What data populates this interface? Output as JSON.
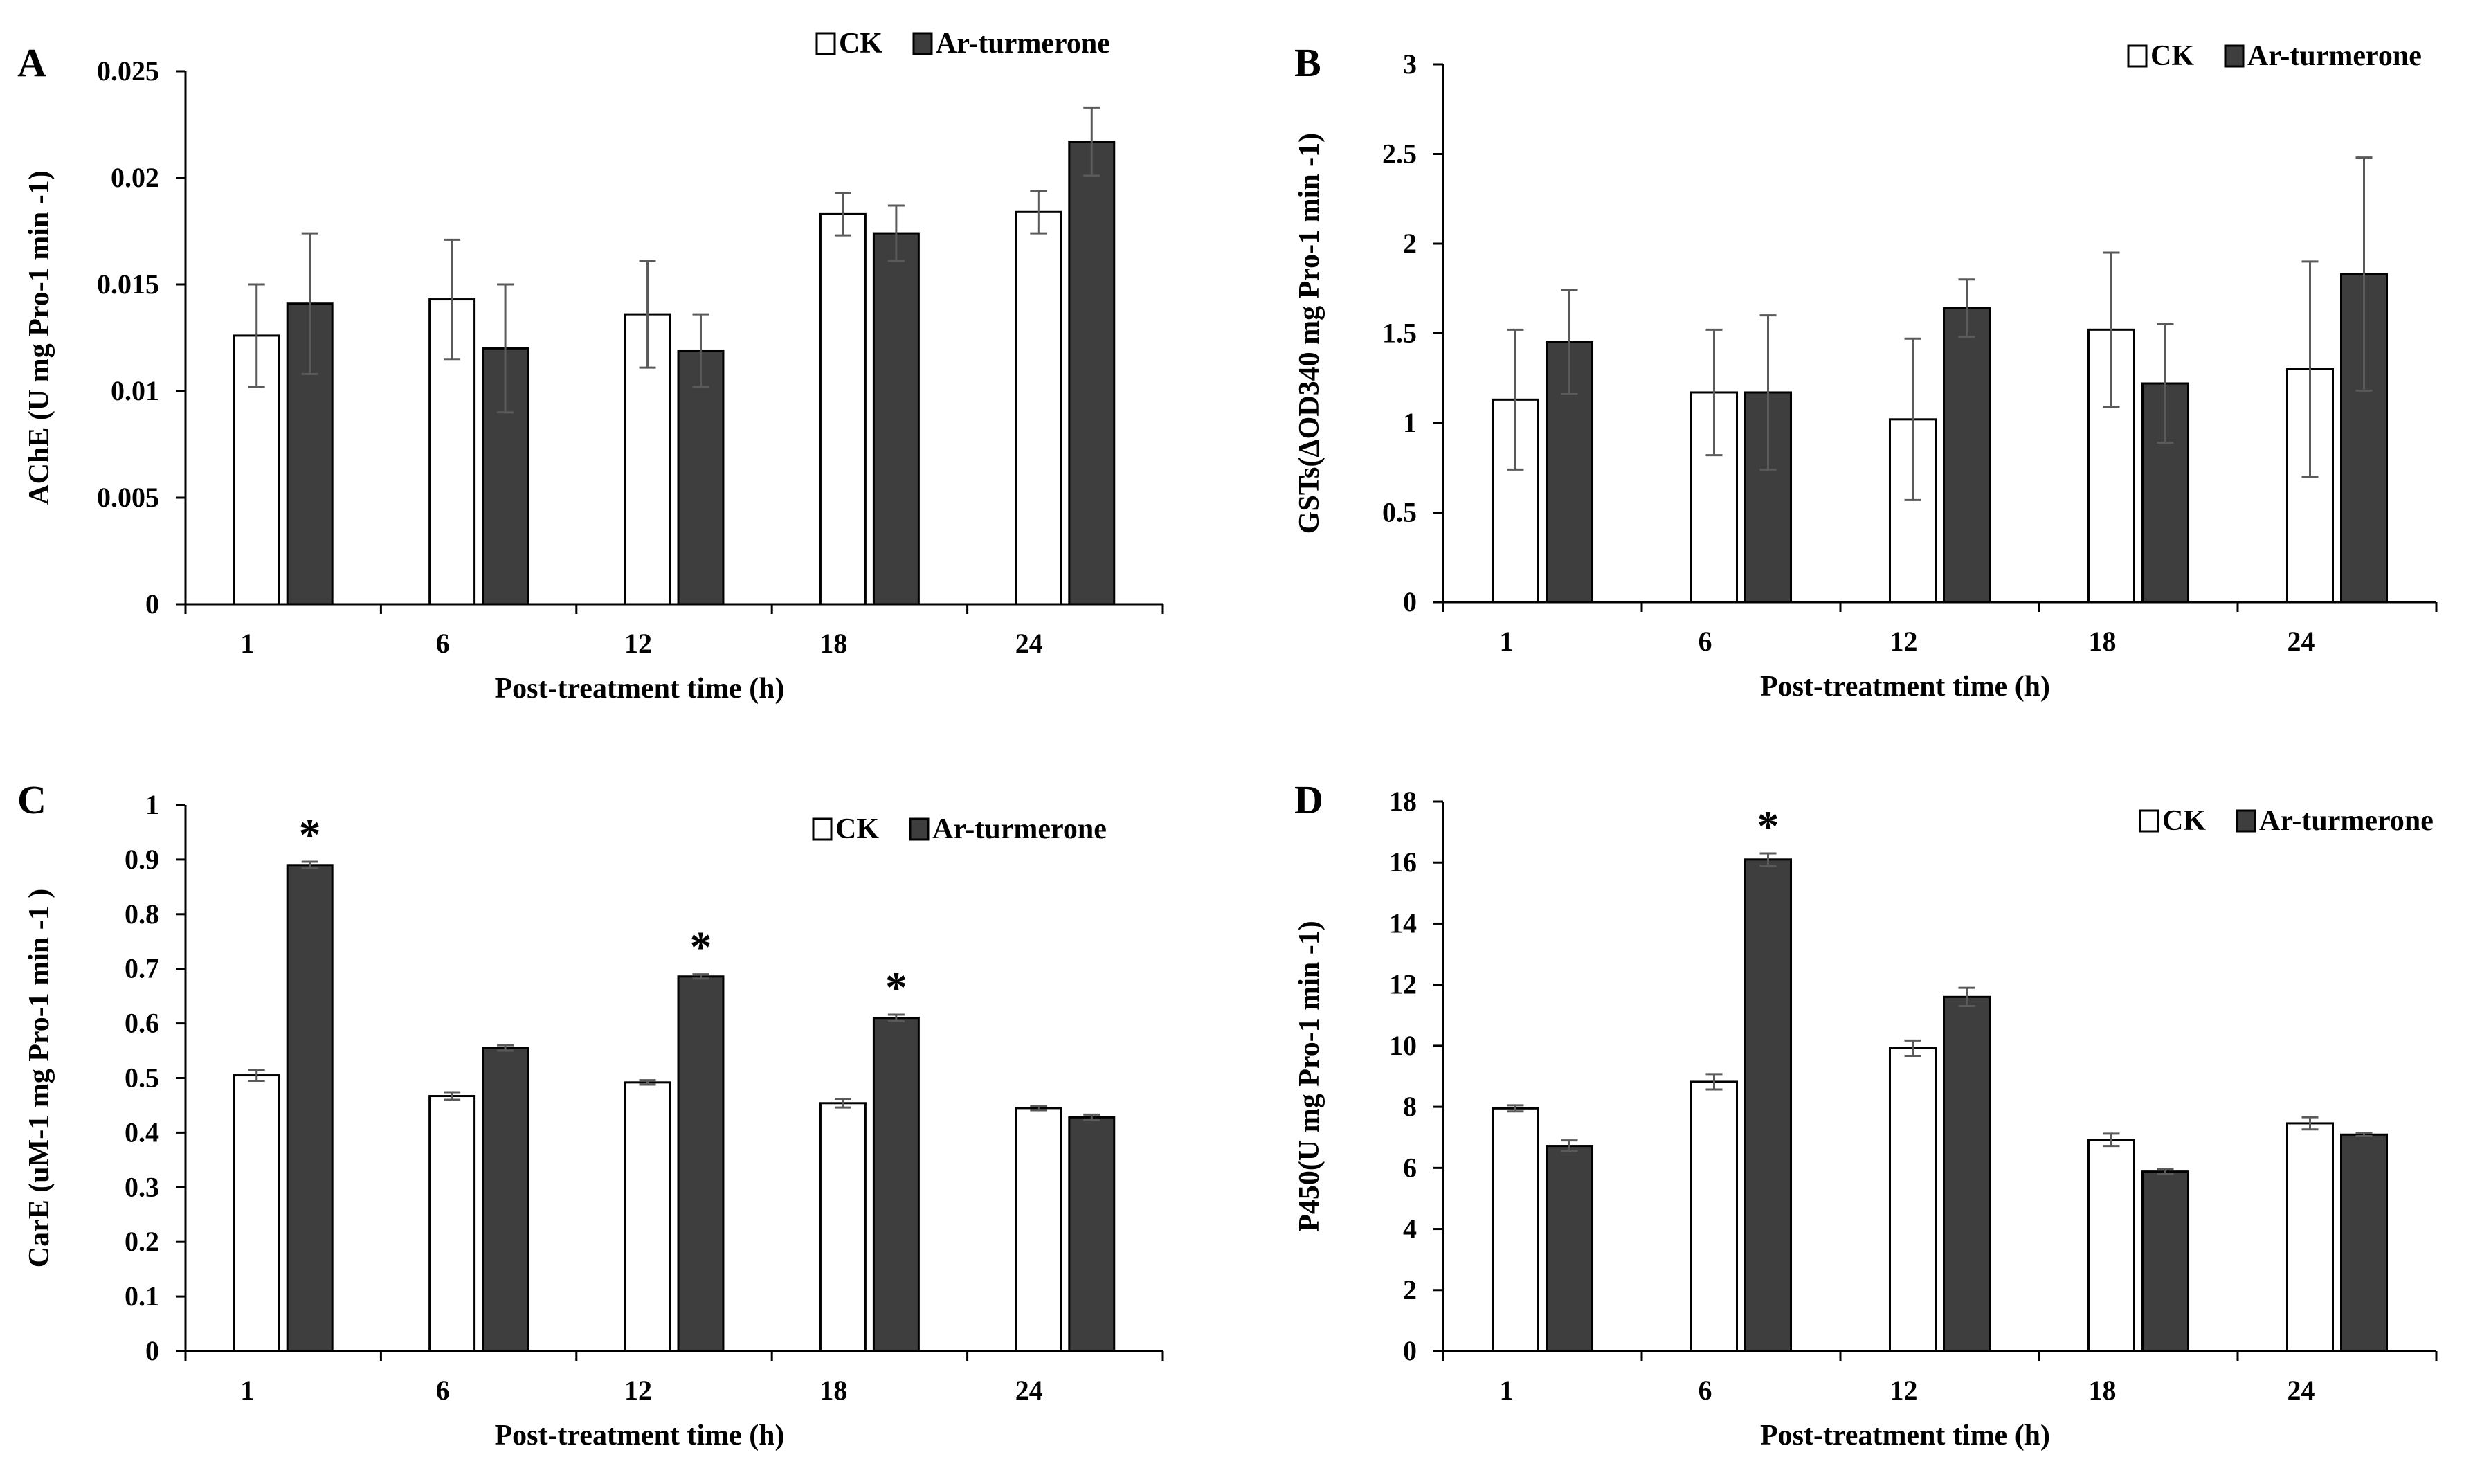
{
  "chart_data": [
    {
      "type": "bar",
      "panel_label": "A",
      "categories": [
        "1",
        "6",
        "12",
        "18",
        "24"
      ],
      "xlabel": "Post-treatment time (h)",
      "ylabel": "AChE (U mg Pro-1 min -1)",
      "ylim": [
        0,
        0.025
      ],
      "yticks": [
        0,
        0.005,
        0.01,
        0.015,
        0.02,
        0.025
      ],
      "ytick_labels": [
        "0",
        "0.005",
        "0.01",
        "0.015",
        "0.02",
        "0.025"
      ],
      "legend": [
        "CK",
        "Ar-turmerone"
      ],
      "legend_position": "top-right",
      "series": [
        {
          "name": "CK",
          "values": [
            0.0126,
            0.0143,
            0.0136,
            0.0183,
            0.0184
          ],
          "errors": [
            0.0024,
            0.0028,
            0.0025,
            0.001,
            0.001
          ]
        },
        {
          "name": "Ar-turmerone",
          "values": [
            0.0141,
            0.012,
            0.0119,
            0.0174,
            0.0217
          ],
          "errors": [
            0.0033,
            0.003,
            0.0017,
            0.0013,
            0.0016
          ]
        }
      ],
      "significant": [
        false,
        false,
        false,
        false,
        false
      ]
    },
    {
      "type": "bar",
      "panel_label": "B",
      "categories": [
        "1",
        "6",
        "12",
        "18",
        "24"
      ],
      "xlabel": "Post-treatment time (h)",
      "ylabel": "GSTs(ΔOD340 mg Pro-1 min -1)",
      "ylim": [
        0,
        3
      ],
      "yticks": [
        0,
        0.5,
        1,
        1.5,
        2,
        2.5,
        3
      ],
      "ytick_labels": [
        "0",
        "0.5",
        "1",
        "1.5",
        "2",
        "2.5",
        "3"
      ],
      "legend": [
        "CK",
        "Ar-turmerone"
      ],
      "legend_position": "top-right",
      "series": [
        {
          "name": "CK",
          "values": [
            1.13,
            1.17,
            1.02,
            1.52,
            1.3
          ],
          "errors": [
            0.39,
            0.35,
            0.45,
            0.43,
            0.6
          ]
        },
        {
          "name": "Ar-turmerone",
          "values": [
            1.45,
            1.17,
            1.64,
            1.22,
            1.83
          ],
          "errors": [
            0.29,
            0.43,
            0.16,
            0.33,
            0.65
          ]
        }
      ],
      "significant": [
        false,
        false,
        false,
        false,
        false
      ]
    },
    {
      "type": "bar",
      "panel_label": "C",
      "categories": [
        "1",
        "6",
        "12",
        "18",
        "24"
      ],
      "xlabel": "Post-treatment time (h)",
      "ylabel": "CarE (uM-1  mg Pro-1 min -1 )",
      "ylim": [
        0,
        1
      ],
      "yticks": [
        0,
        0.1,
        0.2,
        0.3,
        0.4,
        0.5,
        0.6,
        0.7,
        0.8,
        0.9,
        1
      ],
      "ytick_labels": [
        "0",
        "0.1",
        "0.2",
        "0.3",
        "0.4",
        "0.5",
        "0.6",
        "0.7",
        "0.8",
        "0.9",
        "1"
      ],
      "legend": [
        "CK",
        "Ar-turmerone"
      ],
      "legend_position": "top-right",
      "series": [
        {
          "name": "CK",
          "values": [
            0.505,
            0.467,
            0.492,
            0.454,
            0.445
          ],
          "errors": [
            0.01,
            0.007,
            0.004,
            0.008,
            0.004
          ]
        },
        {
          "name": "Ar-turmerone",
          "values": [
            0.89,
            0.555,
            0.686,
            0.61,
            0.428
          ],
          "errors": [
            0.006,
            0.005,
            0.004,
            0.006,
            0.005
          ]
        }
      ],
      "significant": [
        true,
        false,
        true,
        true,
        false
      ],
      "annotation": "*"
    },
    {
      "type": "bar",
      "panel_label": "D",
      "categories": [
        "1",
        "6",
        "12",
        "18",
        "24"
      ],
      "xlabel": "Post-treatment time (h)",
      "ylabel": "P450(U mg Pro-1 min -1)",
      "ylim": [
        0,
        18
      ],
      "yticks": [
        0,
        2,
        4,
        6,
        8,
        10,
        12,
        14,
        16,
        18
      ],
      "ytick_labels": [
        "0",
        "2",
        "4",
        "6",
        "8",
        "10",
        "12",
        "14",
        "16",
        "18"
      ],
      "legend": [
        "CK",
        "Ar-turmerone"
      ],
      "legend_position": "top-right",
      "series": [
        {
          "name": "CK",
          "values": [
            7.95,
            8.82,
            9.92,
            6.92,
            7.46
          ],
          "errors": [
            0.1,
            0.25,
            0.25,
            0.2,
            0.2
          ]
        },
        {
          "name": "Ar-turmerone",
          "values": [
            6.72,
            16.1,
            11.6,
            5.88,
            7.09
          ],
          "errors": [
            0.18,
            0.2,
            0.3,
            0.08,
            0.05
          ]
        }
      ],
      "significant": [
        false,
        true,
        false,
        false,
        false
      ],
      "annotation": "*"
    }
  ],
  "colors": {
    "ck_fill": "#ffffff",
    "ar_fill": "#3e3e3e",
    "bar_stroke": "#000000",
    "axis": "#000000",
    "error": "#5a5a5a"
  }
}
